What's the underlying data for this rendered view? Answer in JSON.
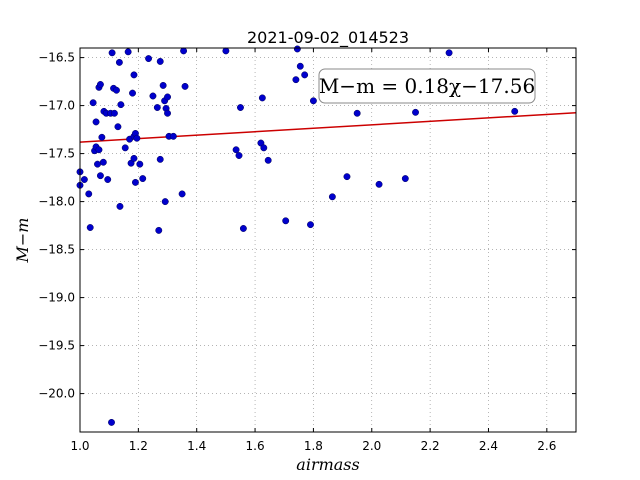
{
  "chart_data": {
    "type": "scatter",
    "title": "2021-09-02_014523",
    "xlabel": "airmass",
    "ylabel": "M−m",
    "xlim": [
      1.0,
      2.7
    ],
    "ylim": [
      -16.4,
      -20.4
    ],
    "y_inverted": true,
    "grid": true,
    "xticks": [
      1.0,
      1.2,
      1.4,
      1.6,
      1.8,
      2.0,
      2.2,
      2.4,
      2.6
    ],
    "xtick_labels": [
      "1.0",
      "1.2",
      "1.4",
      "1.6",
      "1.8",
      "2.0",
      "2.2",
      "2.4",
      "2.6"
    ],
    "yticks": [
      -16.5,
      -17.0,
      -17.5,
      -18.0,
      -18.5,
      -19.0,
      -19.5,
      -20.0
    ],
    "ytick_labels": [
      "−16.5",
      "−17.0",
      "−17.5",
      "−18.0",
      "−18.5",
      "−19.0",
      "−19.5",
      "−20.0"
    ],
    "annotation": "M−m = 0.18χ−17.56",
    "annotation_position": "top-right",
    "fit": {
      "slope": 0.18,
      "intercept": -17.56
    },
    "colors": {
      "points": "#0000cc",
      "fit_line": "#cc0000",
      "grid": "#888888"
    },
    "points": [
      [
        1.0,
        -17.69
      ],
      [
        1.0,
        -17.83
      ],
      [
        1.015,
        -17.77
      ],
      [
        1.03,
        -17.92
      ],
      [
        1.035,
        -18.27
      ],
      [
        1.045,
        -16.97
      ],
      [
        1.05,
        -17.47
      ],
      [
        1.055,
        -17.43
      ],
      [
        1.055,
        -17.17
      ],
      [
        1.06,
        -17.61
      ],
      [
        1.065,
        -17.46
      ],
      [
        1.065,
        -16.81
      ],
      [
        1.07,
        -16.78
      ],
      [
        1.07,
        -17.73
      ],
      [
        1.075,
        -17.33
      ],
      [
        1.08,
        -17.59
      ],
      [
        1.082,
        -17.06
      ],
      [
        1.09,
        -17.08
      ],
      [
        1.095,
        -17.77
      ],
      [
        1.105,
        -17.08
      ],
      [
        1.11,
        -16.45
      ],
      [
        1.115,
        -16.82
      ],
      [
        1.118,
        -17.08
      ],
      [
        1.125,
        -16.84
      ],
      [
        1.13,
        -17.22
      ],
      [
        1.135,
        -16.55
      ],
      [
        1.137,
        -18.05
      ],
      [
        1.14,
        -16.99
      ],
      [
        1.155,
        -17.44
      ],
      [
        1.165,
        -16.44
      ],
      [
        1.17,
        -17.35
      ],
      [
        1.175,
        -17.6
      ],
      [
        1.18,
        -16.87
      ],
      [
        1.185,
        -17.55
      ],
      [
        1.185,
        -17.32
      ],
      [
        1.185,
        -16.68
      ],
      [
        1.19,
        -17.8
      ],
      [
        1.19,
        -17.29
      ],
      [
        1.195,
        -17.34
      ],
      [
        1.205,
        -17.61
      ],
      [
        1.215,
        -17.76
      ],
      [
        1.235,
        -16.51
      ],
      [
        1.25,
        -16.9
      ],
      [
        1.265,
        -17.02
      ],
      [
        1.27,
        -18.3
      ],
      [
        1.275,
        -16.54
      ],
      [
        1.275,
        -17.56
      ],
      [
        1.285,
        -16.79
      ],
      [
        1.29,
        -16.95
      ],
      [
        1.292,
        -18.0
      ],
      [
        1.295,
        -17.03
      ],
      [
        1.3,
        -17.08
      ],
      [
        1.3,
        -16.91
      ],
      [
        1.305,
        -17.32
      ],
      [
        1.32,
        -17.32
      ],
      [
        1.35,
        -17.92
      ],
      [
        1.355,
        -16.43
      ],
      [
        1.36,
        -16.8
      ],
      [
        1.5,
        -16.43
      ],
      [
        1.535,
        -17.46
      ],
      [
        1.545,
        -17.52
      ],
      [
        1.55,
        -17.02
      ],
      [
        1.56,
        -18.28
      ],
      [
        1.62,
        -17.39
      ],
      [
        1.625,
        -16.92
      ],
      [
        1.63,
        -17.44
      ],
      [
        1.645,
        -17.57
      ],
      [
        1.705,
        -18.2
      ],
      [
        1.74,
        -16.73
      ],
      [
        1.745,
        -16.41
      ],
      [
        1.755,
        -16.59
      ],
      [
        1.77,
        -16.68
      ],
      [
        1.79,
        -18.24
      ],
      [
        1.8,
        -16.95
      ],
      [
        1.865,
        -17.95
      ],
      [
        1.915,
        -17.74
      ],
      [
        1.95,
        -17.08
      ],
      [
        2.025,
        -17.82
      ],
      [
        2.115,
        -17.76
      ],
      [
        2.15,
        -17.07
      ],
      [
        2.265,
        -16.45
      ],
      [
        2.49,
        -17.06
      ],
      [
        1.108,
        -20.3
      ]
    ]
  }
}
